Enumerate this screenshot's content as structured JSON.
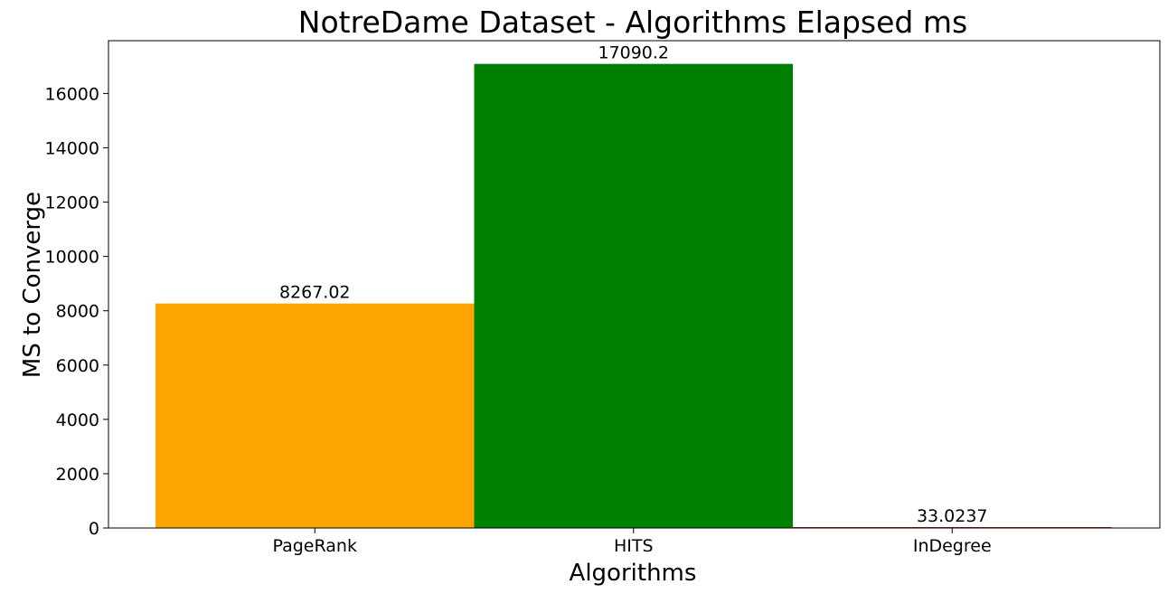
{
  "chart_data": {
    "type": "bar",
    "title": "NotreDame Dataset - Algorithms Elapsed ms",
    "xlabel": "Algorithms",
    "ylabel": "MS to Converge",
    "categories": [
      "PageRank",
      "HITS",
      "InDegree"
    ],
    "values": [
      8267.02,
      17090.2,
      33.0237
    ],
    "value_labels": [
      "8267.02",
      "17090.2",
      "33.0237"
    ],
    "colors": [
      "#FFA500",
      "#008000",
      "#8B2500"
    ],
    "ylim": [
      0,
      17944.7
    ],
    "yticks": [
      0,
      2000,
      4000,
      6000,
      8000,
      10000,
      12000,
      14000,
      16000
    ],
    "ytick_labels": [
      "0",
      "2000",
      "4000",
      "6000",
      "8000",
      "10000",
      "12000",
      "14000",
      "16000"
    ],
    "grid": false,
    "legend": "none"
  }
}
